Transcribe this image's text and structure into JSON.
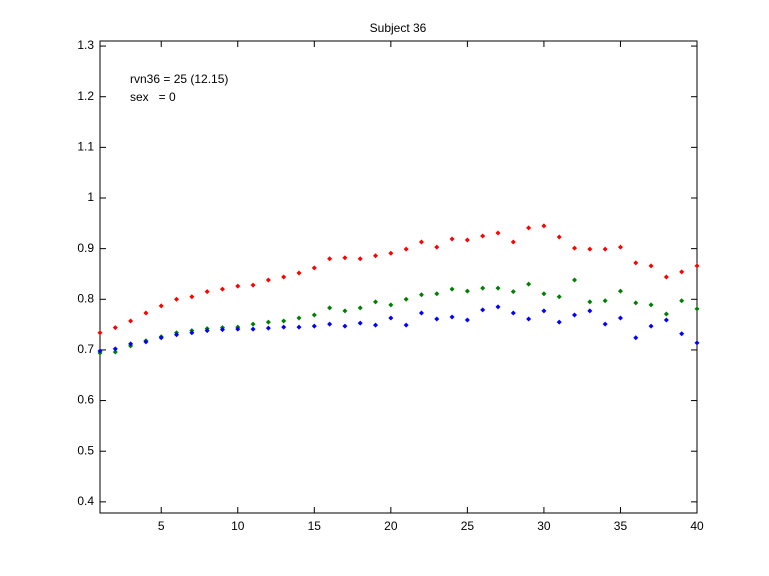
{
  "chart_data": {
    "type": "scatter",
    "title": "Subject 36",
    "annotations": [
      "rvn36 = 25 (12.15)",
      "sex   = 0"
    ],
    "x": [
      1,
      2,
      3,
      4,
      5,
      6,
      7,
      8,
      9,
      10,
      11,
      12,
      13,
      14,
      15,
      16,
      17,
      18,
      19,
      20,
      21,
      22,
      23,
      24,
      25,
      26,
      27,
      28,
      29,
      30,
      31,
      32,
      33,
      34,
      35,
      36,
      37,
      38,
      39,
      40
    ],
    "series": [
      {
        "color": "#ff0000",
        "values": [
          0.734,
          0.744,
          0.757,
          0.773,
          0.787,
          0.8,
          0.805,
          0.815,
          0.82,
          0.826,
          0.828,
          0.838,
          0.844,
          0.852,
          0.862,
          0.88,
          0.882,
          0.88,
          0.886,
          0.891,
          0.899,
          0.913,
          0.903,
          0.919,
          0.917,
          0.925,
          0.931,
          0.913,
          0.941,
          0.945,
          0.923,
          0.901,
          0.899,
          0.899,
          0.903,
          0.872,
          0.866,
          0.844,
          0.854,
          0.866
        ]
      },
      {
        "color": "#008000",
        "values": [
          0.694,
          0.696,
          0.708,
          0.718,
          0.726,
          0.734,
          0.738,
          0.742,
          0.744,
          0.745,
          0.751,
          0.755,
          0.757,
          0.763,
          0.769,
          0.783,
          0.777,
          0.783,
          0.795,
          0.789,
          0.8,
          0.809,
          0.811,
          0.82,
          0.816,
          0.822,
          0.822,
          0.815,
          0.83,
          0.811,
          0.805,
          0.838,
          0.795,
          0.797,
          0.816,
          0.793,
          0.789,
          0.771,
          0.797,
          0.781
        ]
      },
      {
        "color": "#0000ff",
        "values": [
          0.698,
          0.702,
          0.712,
          0.716,
          0.724,
          0.73,
          0.734,
          0.738,
          0.74,
          0.741,
          0.741,
          0.743,
          0.745,
          0.745,
          0.747,
          0.751,
          0.747,
          0.753,
          0.749,
          0.763,
          0.749,
          0.773,
          0.761,
          0.765,
          0.759,
          0.779,
          0.785,
          0.773,
          0.761,
          0.777,
          0.755,
          0.769,
          0.777,
          0.751,
          0.763,
          0.724,
          0.747,
          0.759,
          0.732,
          0.714
        ]
      }
    ],
    "xlim": [
      1,
      40
    ],
    "xticks": [
      5,
      10,
      15,
      20,
      25,
      30,
      35,
      40
    ],
    "ylim": [
      0.378,
      1.31
    ],
    "yticks": [
      0.4,
      0.5,
      0.6,
      0.7,
      0.8,
      0.9,
      1,
      1.1,
      1.2,
      1.3
    ],
    "grid": false
  }
}
